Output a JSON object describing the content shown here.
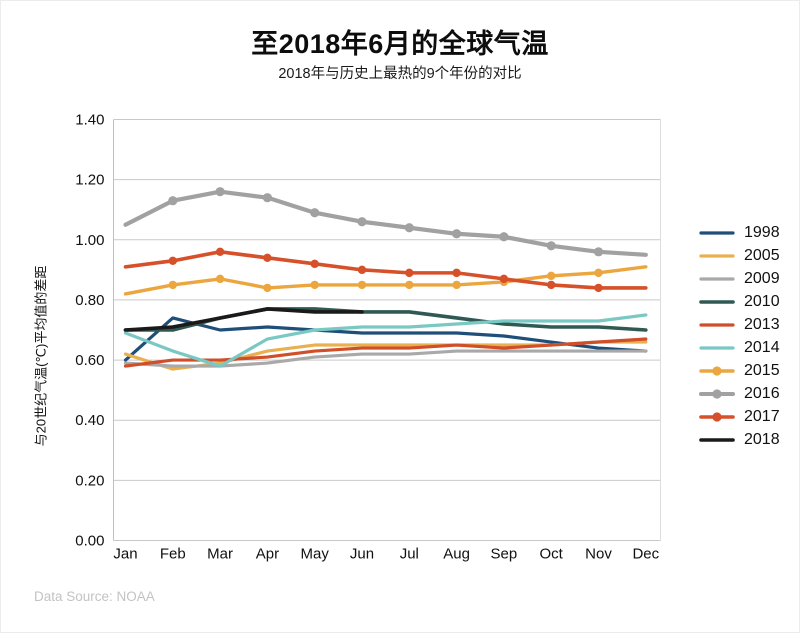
{
  "header": {
    "title": "至2018年6月的全球气温",
    "subtitle": "2018年与历史上最热的9个年份的对比"
  },
  "footer": {
    "source": "Data Source: NOAA"
  },
  "chart_data": {
    "type": "line",
    "title": "至2018年6月的全球气温",
    "subtitle": "2018年与历史上最热的9个年份的对比",
    "xlabel": "",
    "ylabel": "与20世纪气温(℃)平均值的差距",
    "categories": [
      "Jan",
      "Feb",
      "Mar",
      "Apr",
      "May",
      "Jun",
      "Jul",
      "Aug",
      "Sep",
      "Oct",
      "Nov",
      "Dec"
    ],
    "ylim": [
      0.0,
      1.4
    ],
    "ytick_step": 0.2,
    "ytick_labels": [
      "0.00",
      "0.20",
      "0.40",
      "0.60",
      "0.80",
      "1.00",
      "1.20",
      "1.40"
    ],
    "grid": "horizontal-only",
    "legend_position": "right",
    "series": [
      {
        "name": "1998",
        "color": "#1f4e79",
        "line_width": 3.2,
        "markers": false,
        "values": [
          0.6,
          0.74,
          0.7,
          0.71,
          0.7,
          0.69,
          0.69,
          0.69,
          0.68,
          0.66,
          0.64,
          0.63
        ]
      },
      {
        "name": "2005",
        "color": "#e9b050",
        "line_width": 3.2,
        "markers": false,
        "values": [
          0.62,
          0.57,
          0.59,
          0.63,
          0.65,
          0.65,
          0.65,
          0.65,
          0.65,
          0.65,
          0.66,
          0.66
        ]
      },
      {
        "name": "2009",
        "color": "#a9a9a9",
        "line_width": 3.2,
        "markers": false,
        "values": [
          0.59,
          0.58,
          0.58,
          0.59,
          0.61,
          0.62,
          0.62,
          0.63,
          0.63,
          0.63,
          0.63,
          0.63
        ]
      },
      {
        "name": "2010",
        "color": "#305953",
        "line_width": 3.6,
        "markers": false,
        "values": [
          0.7,
          0.7,
          0.74,
          0.77,
          0.77,
          0.76,
          0.76,
          0.74,
          0.72,
          0.71,
          0.71,
          0.7
        ]
      },
      {
        "name": "2013",
        "color": "#d04e2a",
        "line_width": 3.2,
        "markers": false,
        "values": [
          0.58,
          0.6,
          0.6,
          0.61,
          0.63,
          0.64,
          0.64,
          0.65,
          0.64,
          0.65,
          0.66,
          0.67
        ]
      },
      {
        "name": "2014",
        "color": "#7ac8c3",
        "line_width": 3.2,
        "markers": false,
        "values": [
          0.69,
          0.63,
          0.58,
          0.67,
          0.7,
          0.71,
          0.71,
          0.72,
          0.73,
          0.73,
          0.73,
          0.75
        ]
      },
      {
        "name": "2015",
        "color": "#eca63f",
        "line_width": 3.4,
        "markers": true,
        "values": [
          0.82,
          0.85,
          0.87,
          0.84,
          0.85,
          0.85,
          0.85,
          0.85,
          0.86,
          0.88,
          0.89,
          0.91
        ]
      },
      {
        "name": "2016",
        "color": "#a1a1a1",
        "line_width": 4.2,
        "markers": true,
        "values": [
          1.05,
          1.13,
          1.16,
          1.14,
          1.09,
          1.06,
          1.04,
          1.02,
          1.01,
          0.98,
          0.96,
          0.95
        ]
      },
      {
        "name": "2017",
        "color": "#d6502a",
        "line_width": 3.6,
        "markers": true,
        "values": [
          0.91,
          0.93,
          0.96,
          0.94,
          0.92,
          0.9,
          0.89,
          0.89,
          0.87,
          0.85,
          0.84,
          0.84
        ]
      },
      {
        "name": "2018",
        "color": "#1a1a1a",
        "line_width": 3.6,
        "markers": false,
        "values": [
          0.7,
          0.71,
          0.74,
          0.77,
          0.76,
          0.76
        ]
      }
    ]
  }
}
